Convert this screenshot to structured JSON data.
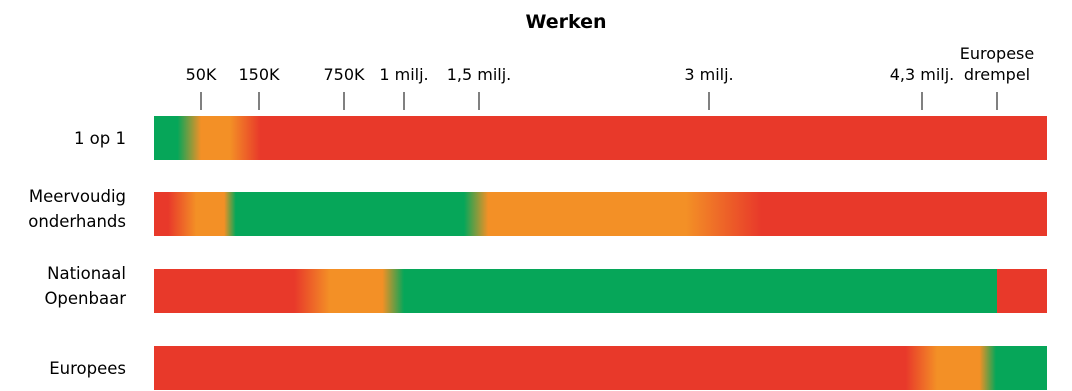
{
  "chart_data": {
    "type": "heatmap",
    "title": "Werken",
    "x_scale": "piecewise-threshold",
    "ticks": [
      {
        "value": 50000,
        "label": "50K"
      },
      {
        "value": 150000,
        "label": "150K"
      },
      {
        "value": 750000,
        "label": "750K"
      },
      {
        "value": 1000000,
        "label": "1 milj."
      },
      {
        "value": 1500000,
        "label": "1,5 milj."
      },
      {
        "value": 3000000,
        "label": "3 milj."
      },
      {
        "value": 4300000,
        "label": "4,3 milj."
      },
      {
        "value": 5538000,
        "label": [
          "Europese",
          "drempel"
        ]
      }
    ],
    "colors": {
      "red": "#e8392a",
      "orange": "#f39026",
      "green": "#06a659"
    },
    "rows": [
      {
        "label": [
          "1 op 1"
        ],
        "stops": [
          {
            "v": 0,
            "c": "green"
          },
          {
            "v": 25000,
            "c": "green"
          },
          {
            "v": 50000,
            "c": "orange"
          },
          {
            "v": 100000,
            "c": "orange"
          },
          {
            "v": 160000,
            "c": "red"
          },
          {
            "v": 7000000,
            "c": "red"
          }
        ]
      },
      {
        "label": [
          "Meervoudig",
          "onderhands"
        ],
        "stops": [
          {
            "v": 0,
            "c": "red"
          },
          {
            "v": 15000,
            "c": "red"
          },
          {
            "v": 45000,
            "c": "orange"
          },
          {
            "v": 90000,
            "c": "orange"
          },
          {
            "v": 110000,
            "c": "green"
          },
          {
            "v": 1400000,
            "c": "green"
          },
          {
            "v": 1560000,
            "c": "orange"
          },
          {
            "v": 2850000,
            "c": "orange"
          },
          {
            "v": 3320000,
            "c": "red"
          },
          {
            "v": 7000000,
            "c": "red"
          }
        ]
      },
      {
        "label": [
          "Nationaal",
          "Openbaar"
        ],
        "stops": [
          {
            "v": 0,
            "c": "red"
          },
          {
            "v": 400000,
            "c": "red"
          },
          {
            "v": 650000,
            "c": "orange"
          },
          {
            "v": 910000,
            "c": "orange"
          },
          {
            "v": 1000000,
            "c": "green"
          },
          {
            "v": 5538000,
            "c": "green"
          },
          {
            "v": 5538001,
            "c": "red"
          },
          {
            "v": 7000000,
            "c": "red"
          }
        ]
      },
      {
        "label": [
          "Europees"
        ],
        "stops": [
          {
            "v": 0,
            "c": "red"
          },
          {
            "v": 4200000,
            "c": "red"
          },
          {
            "v": 4550000,
            "c": "orange"
          },
          {
            "v": 5250000,
            "c": "orange"
          },
          {
            "v": 5520000,
            "c": "green"
          },
          {
            "v": 7000000,
            "c": "green"
          }
        ]
      }
    ]
  }
}
